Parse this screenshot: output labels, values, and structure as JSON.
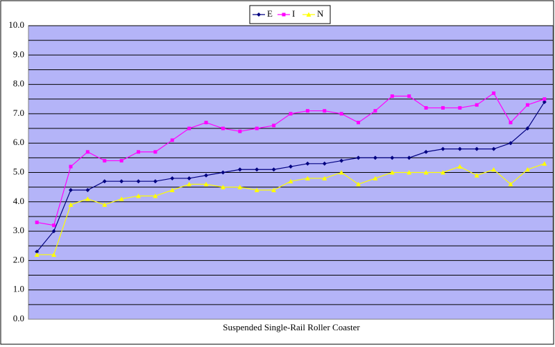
{
  "chart_data": {
    "type": "line",
    "x_label": "Suspended Single-Rail Roller Coaster",
    "categories": [
      null,
      null,
      null,
      null,
      null,
      null,
      null,
      null,
      null,
      null,
      null,
      null,
      null,
      null,
      null,
      null,
      null,
      null,
      null,
      null,
      null,
      null,
      null,
      null,
      null,
      null,
      null,
      null,
      null,
      null,
      null
    ],
    "series": [
      {
        "name": "E",
        "color": "#000080",
        "marker": "diamond",
        "values": [
          2.3,
          3.0,
          4.4,
          4.4,
          4.7,
          4.7,
          4.7,
          4.7,
          4.8,
          4.8,
          4.9,
          5.0,
          5.1,
          5.1,
          5.1,
          5.2,
          5.3,
          5.3,
          5.4,
          5.5,
          5.5,
          5.5,
          5.5,
          5.7,
          5.8,
          5.8,
          5.8,
          5.8,
          6.0,
          6.5,
          7.4
        ]
      },
      {
        "name": "I",
        "color": "#ff00ff",
        "marker": "square",
        "values": [
          3.3,
          3.2,
          5.2,
          5.7,
          5.4,
          5.4,
          5.7,
          5.7,
          6.1,
          6.5,
          6.7,
          6.5,
          6.4,
          6.5,
          6.6,
          7.0,
          7.1,
          7.1,
          7.0,
          6.7,
          7.1,
          7.6,
          7.6,
          7.2,
          7.2,
          7.2,
          7.3,
          7.7,
          6.7,
          7.3,
          7.5
        ]
      },
      {
        "name": "N",
        "color": "#ffff00",
        "marker": "triangle",
        "values": [
          2.2,
          2.2,
          3.9,
          4.1,
          3.9,
          4.1,
          4.2,
          4.2,
          4.4,
          4.6,
          4.6,
          4.5,
          4.5,
          4.4,
          4.4,
          4.7,
          4.8,
          4.8,
          5.0,
          4.6,
          4.8,
          5.0,
          5.0,
          5.0,
          5.0,
          5.2,
          4.9,
          5.1,
          4.6,
          5.1,
          5.3
        ]
      }
    ],
    "ylim": [
      0,
      10
    ],
    "yticks": [
      {
        "value": 0,
        "label": "0.0"
      },
      {
        "value": 1,
        "label": "1.0"
      },
      {
        "value": 2,
        "label": "2.0"
      },
      {
        "value": 3,
        "label": "3.0"
      },
      {
        "value": 4,
        "label": "4.0"
      },
      {
        "value": 5,
        "label": "5.0"
      },
      {
        "value": 6,
        "label": "6.0"
      },
      {
        "value": 7,
        "label": "7.0"
      },
      {
        "value": 8,
        "label": "8.0"
      },
      {
        "value": 9,
        "label": "9.0"
      },
      {
        "value": 10,
        "label": "10.0"
      }
    ],
    "minor_yticks": [
      0.5,
      1.5,
      2.5,
      3.5,
      4.5,
      5.5,
      6.5,
      7.5,
      8.5,
      9.5
    ],
    "grid": true,
    "plot_background": "#b4b4f8",
    "legend": "top"
  }
}
